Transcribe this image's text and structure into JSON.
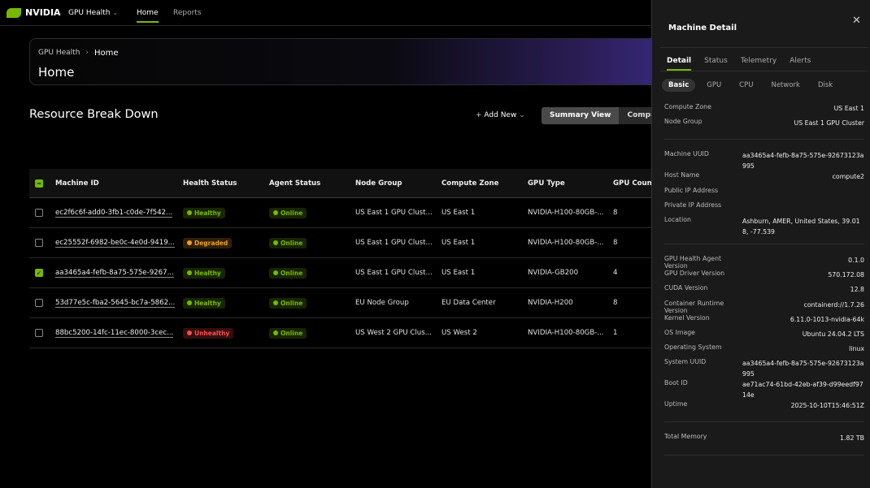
{
  "nav": {
    "brand": "NVIDIA",
    "app": "GPU Health",
    "links": [
      "Home",
      "Reports"
    ],
    "active": 0
  },
  "breadcrumb": {
    "items": [
      "GPU Health",
      "Home"
    ],
    "title": "Home"
  },
  "section": {
    "title": "Resource Break Down",
    "add_new": "Add New",
    "views": [
      "Summary View",
      "Compute"
    ],
    "active_view": 0
  },
  "table": {
    "columns": [
      "Machine ID",
      "Health Status",
      "Agent Status",
      "Node Group",
      "Compute Zone",
      "GPU Type",
      "GPU Count"
    ],
    "rows": [
      {
        "checked": false,
        "machine_id": "ec2f6c6f-add0-3fb1-c0de-7f542...",
        "health": {
          "label": "Healthy",
          "color": "#76b900"
        },
        "agent": {
          "label": "Online",
          "color": "#76b900"
        },
        "node_group": "US East 1 GPU Clust...",
        "compute_zone": "US East 1",
        "gpu_type": "NVIDIA-H100-80GB-...",
        "gpu_count": 8
      },
      {
        "checked": false,
        "machine_id": "ec25552f-6982-be0c-4e0d-9419...",
        "health": {
          "label": "Degraded",
          "color": "#f0a020"
        },
        "agent": {
          "label": "Online",
          "color": "#76b900"
        },
        "node_group": "US East 1 GPU Clust...",
        "compute_zone": "US East 1",
        "gpu_type": "NVIDIA-H100-80GB-...",
        "gpu_count": 8
      },
      {
        "checked": true,
        "machine_id": "aa3465a4-fefb-8a75-575e-9267...",
        "health": {
          "label": "Healthy",
          "color": "#76b900"
        },
        "agent": {
          "label": "Online",
          "color": "#76b900"
        },
        "node_group": "US East 1 GPU Clust...",
        "compute_zone": "US East 1",
        "gpu_type": "NVIDIA-GB200",
        "gpu_count": 4
      },
      {
        "checked": false,
        "machine_id": "53d77e5c-fba2-5645-bc7a-5862...",
        "health": {
          "label": "Healthy",
          "color": "#76b900"
        },
        "agent": {
          "label": "Online",
          "color": "#76b900"
        },
        "node_group": "EU Node Group",
        "compute_zone": "EU Data Center",
        "gpu_type": "NVIDIA-H200",
        "gpu_count": 8
      },
      {
        "checked": false,
        "machine_id": "88bc5200-14fc-11ec-8000-3cec...",
        "health": {
          "label": "Unhealthy",
          "color": "#ff4d4d"
        },
        "agent": {
          "label": "Online",
          "color": "#76b900"
        },
        "node_group": "US West 2 GPU Clus...",
        "compute_zone": "US West 2",
        "gpu_type": "NVIDIA-H100-80GB-...",
        "gpu_count": 1
      }
    ]
  },
  "detail": {
    "title": "Machine Detail",
    "tabs": [
      "Detail",
      "Status",
      "Telemetry",
      "Alerts"
    ],
    "active_tab": 0,
    "subtabs": [
      "Basic",
      "GPU",
      "CPU",
      "Network",
      "Disk"
    ],
    "active_subtab": 0,
    "groups": [
      [
        {
          "label": "Compute Zone",
          "value": "US East 1"
        },
        {
          "label": "Node Group",
          "value": "US East 1 GPU Cluster"
        }
      ],
      [
        {
          "label": "Machine UUID",
          "value": "aa3465a4-fefb-8a75-575e-92673123a995"
        },
        {
          "label": "Host Name",
          "value": "compute2"
        },
        {
          "label": "Public IP Address"
        },
        {
          "label": "Private IP Address"
        },
        {
          "label": "Location",
          "value": "Ashburn, AMER, United States, 39.018, -77.539"
        }
      ],
      [
        {
          "label": "GPU Health Agent Version",
          "value": "0.1.0"
        },
        {
          "label": "GPU Driver Version",
          "value": "570.172.08"
        },
        {
          "label": "CUDA Version",
          "value": "12.8"
        },
        {
          "label": "Container Runtime Version",
          "value": "containerd://1.7.26"
        },
        {
          "label": "Kernel Version",
          "value": "6.11.0-1013-nvidia-64k"
        },
        {
          "label": "OS Image",
          "value": "Ubuntu 24.04.2 LTS"
        },
        {
          "label": "Operating System",
          "value": "linux"
        },
        {
          "label": "System UUID",
          "value": "aa3465a4-fefb-8a75-575e-92673123a995"
        },
        {
          "label": "Boot ID",
          "value": "ae71ac74-61bd-42eb-af39-d99eedf9714e"
        },
        {
          "label": "Uptime",
          "value": "2025-10-10T15:46:51Z"
        }
      ],
      [
        {
          "label": "Total Memory",
          "value": "1.82 TB"
        }
      ]
    ]
  }
}
